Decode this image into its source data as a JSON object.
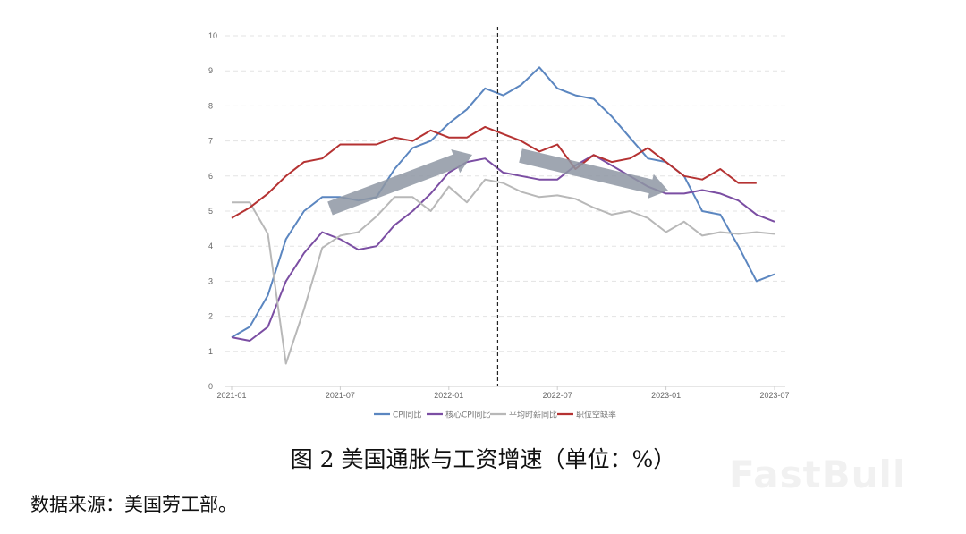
{
  "chart_data": {
    "type": "line",
    "title": "",
    "xlabel": "",
    "ylabel": "",
    "ylim": [
      0,
      10
    ],
    "yticks": [
      "0",
      "1",
      "2",
      "3",
      "4",
      "5",
      "6",
      "7",
      "8",
      "9",
      "10"
    ],
    "grid": "horizontal-dashed",
    "legend_position": "bottom",
    "x_tick_labels": [
      "2021-01",
      "2021-07",
      "2022-01",
      "2022-07",
      "2023-01",
      "2023-07"
    ],
    "x": [
      "2021-01",
      "2021-02",
      "2021-03",
      "2021-04",
      "2021-05",
      "2021-06",
      "2021-07",
      "2021-08",
      "2021-09",
      "2021-10",
      "2021-11",
      "2021-12",
      "2022-01",
      "2022-02",
      "2022-03",
      "2022-04",
      "2022-05",
      "2022-06",
      "2022-07",
      "2022-08",
      "2022-09",
      "2022-10",
      "2022-11",
      "2022-12",
      "2023-01",
      "2023-02",
      "2023-03",
      "2023-04",
      "2023-05",
      "2023-06",
      "2023-07"
    ],
    "series": [
      {
        "name": "CPI同比",
        "color": "#5b86c0",
        "values": [
          1.4,
          1.7,
          2.6,
          4.2,
          5.0,
          5.4,
          5.4,
          5.3,
          5.4,
          6.2,
          6.8,
          7.0,
          7.5,
          7.9,
          8.5,
          8.3,
          8.6,
          9.1,
          8.5,
          8.3,
          8.2,
          7.7,
          7.1,
          6.5,
          6.4,
          6.0,
          5.0,
          4.9,
          4.0,
          3.0,
          3.2
        ]
      },
      {
        "name": "核心CPI同比",
        "color": "#7b4ea3",
        "values": [
          1.4,
          1.3,
          1.7,
          3.0,
          3.8,
          4.4,
          4.2,
          3.9,
          4.0,
          4.6,
          5.0,
          5.5,
          6.1,
          6.4,
          6.5,
          6.1,
          6.0,
          5.9,
          5.9,
          6.3,
          6.6,
          6.3,
          6.0,
          5.7,
          5.5,
          5.5,
          5.6,
          5.5,
          5.3,
          4.9,
          4.7
        ]
      },
      {
        "name": "平均时薪同比",
        "color": "#b8b8b8",
        "values": [
          5.25,
          5.25,
          4.35,
          0.65,
          2.2,
          3.95,
          4.3,
          4.4,
          4.85,
          5.4,
          5.4,
          5.0,
          5.7,
          5.25,
          5.9,
          5.8,
          5.55,
          5.4,
          5.45,
          5.35,
          5.1,
          4.9,
          5.0,
          4.8,
          4.4,
          4.7,
          4.3,
          4.4,
          4.35,
          4.4,
          4.35
        ]
      },
      {
        "name": "职位空缺率",
        "color": "#b53232",
        "values": [
          4.8,
          5.1,
          5.5,
          6.0,
          6.4,
          6.5,
          6.9,
          6.9,
          6.9,
          7.1,
          7.0,
          7.3,
          7.1,
          7.1,
          7.4,
          7.2,
          7.0,
          6.7,
          6.9,
          6.2,
          6.6,
          6.4,
          6.5,
          6.8,
          6.4,
          6.0,
          5.9,
          6.2,
          5.8,
          5.8,
          null
        ]
      }
    ],
    "vertical_marker_after": "2022-03"
  },
  "caption": "图 2 美国通胀与工资增速（单位：%）",
  "source": "数据来源：美国劳工部。",
  "watermark": "FastBull"
}
